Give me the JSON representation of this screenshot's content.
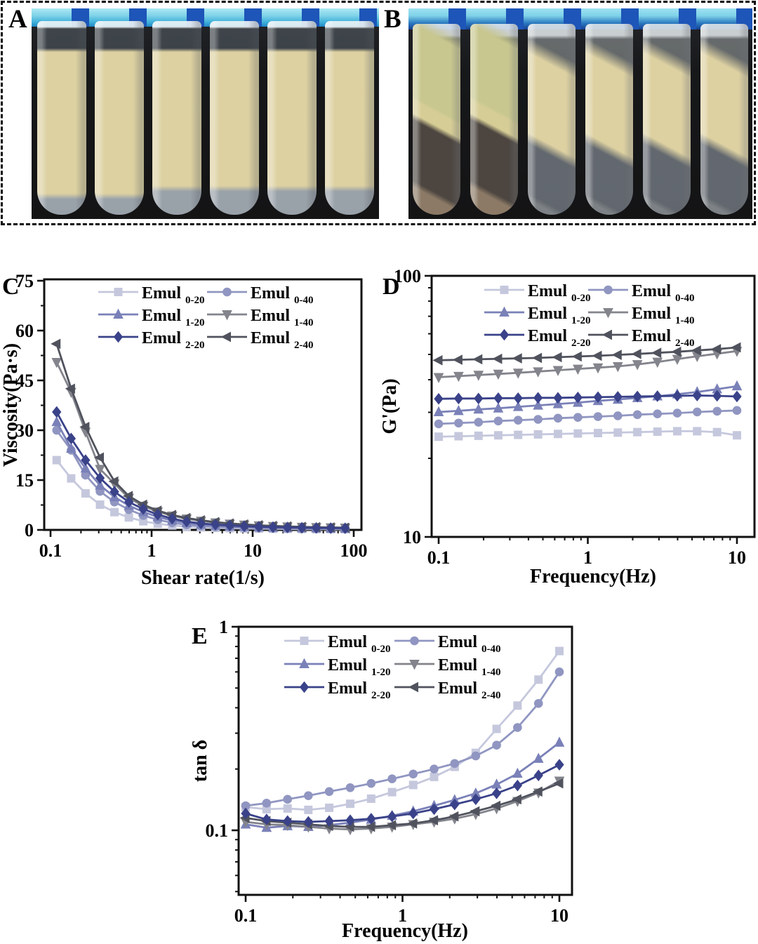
{
  "panels": {
    "a": "A",
    "b": "B",
    "c": "C",
    "d": "D",
    "e": "E"
  },
  "photos": {
    "panel_a_tube_count": 6,
    "panel_b_tube_count": 6,
    "colors": {
      "rack_light": "#7fd2e8",
      "rack_dark": "#1d55b8",
      "emulsion": "#ddd1a2",
      "serum": "#99a1a9",
      "oil_phase": "#c8c78f",
      "sediment": "#4c4540",
      "sludge": "#8c7a66"
    }
  },
  "chart_data": [
    {
      "id": "C",
      "type": "line",
      "xscale": "log",
      "yscale": "linear",
      "xlabel": "Shear rate(1/s)",
      "ylabel": "Viscosity(Pa·s)",
      "xlim": [
        0.1,
        100
      ],
      "ylim": [
        0,
        75
      ],
      "grid": false,
      "legend_position": "top",
      "x_ticks": [
        {
          "v": 0.1,
          "label": "0.1"
        },
        {
          "v": 1,
          "label": "1"
        },
        {
          "v": 10,
          "label": "10"
        },
        {
          "v": 100,
          "label": "100"
        }
      ],
      "y_ticks": [
        {
          "v": 0,
          "label": "0"
        },
        {
          "v": 15,
          "label": "15"
        },
        {
          "v": 30,
          "label": "30"
        },
        {
          "v": 45,
          "label": "45"
        },
        {
          "v": 60,
          "label": "60"
        },
        {
          "v": 75,
          "label": "75"
        }
      ],
      "x": [
        0.115,
        0.16,
        0.222,
        0.309,
        0.429,
        0.596,
        0.827,
        1.15,
        1.6,
        2.22,
        3.08,
        4.28,
        5.94,
        8.25,
        11.5,
        15.9,
        22.1,
        30.7,
        42.6,
        59.2,
        82.2
      ],
      "series": [
        {
          "name": "Emul",
          "sub": "0-20",
          "marker": "square",
          "color": "#c5c8dd",
          "y": [
            21,
            15.5,
            11,
            7.6,
            5.35,
            3.75,
            2.6,
            1.85,
            1.33,
            0.98,
            0.76,
            0.61,
            0.51,
            0.43,
            0.37,
            0.32,
            0.29,
            0.26,
            0.23,
            0.21,
            0.2
          ]
        },
        {
          "name": "Emul",
          "sub": "0-40",
          "marker": "circle",
          "color": "#9096c1",
          "y": [
            30,
            24,
            16.5,
            11.6,
            8.4,
            6.1,
            4.35,
            3.05,
            2.15,
            1.55,
            1.18,
            0.94,
            0.78,
            0.66,
            0.57,
            0.5,
            0.45,
            0.4,
            0.36,
            0.33,
            0.3
          ]
        },
        {
          "name": "Emul",
          "sub": "1-20",
          "marker": "triangle-up",
          "color": "#7a81b8",
          "y": [
            32.5,
            24.5,
            18.5,
            13.4,
            9.9,
            7.3,
            5.4,
            3.9,
            2.85,
            2.1,
            1.62,
            1.3,
            1.08,
            0.92,
            0.79,
            0.69,
            0.61,
            0.55,
            0.5,
            0.46,
            0.42
          ]
        },
        {
          "name": "Emul",
          "sub": "1-40",
          "marker": "triangle-down",
          "color": "#83848c",
          "y": [
            50.5,
            41.5,
            29.5,
            18.3,
            13.9,
            9.6,
            7.2,
            5.5,
            4.25,
            3.35,
            2.7,
            2.2,
            1.82,
            1.53,
            1.3,
            1.12,
            0.98,
            0.86,
            0.77,
            0.7,
            0.64
          ]
        },
        {
          "name": "Emul",
          "sub": "2-20",
          "marker": "diamond",
          "color": "#3a4289",
          "y": [
            35.5,
            27.5,
            21,
            15.6,
            11.5,
            8.4,
            6.3,
            4.6,
            3.4,
            2.5,
            1.95,
            1.6,
            1.33,
            1.12,
            0.96,
            0.84,
            0.74,
            0.66,
            0.6,
            0.55,
            0.5
          ]
        },
        {
          "name": "Emul",
          "sub": "2-40",
          "marker": "triangle-left",
          "color": "#50535d",
          "y": [
            56,
            42.5,
            31,
            21.8,
            14.6,
            10.2,
            7.6,
            5.8,
            4.5,
            3.6,
            2.9,
            2.35,
            1.95,
            1.65,
            1.4,
            1.2,
            1.05,
            0.92,
            0.82,
            0.74,
            0.68
          ]
        }
      ]
    },
    {
      "id": "D",
      "type": "line",
      "xscale": "log",
      "yscale": "log",
      "xlabel": "Frequency(Hz)",
      "ylabel": "G'(Pa)",
      "xlim": [
        0.1,
        10
      ],
      "ylim": [
        10,
        100
      ],
      "grid": false,
      "legend_position": "top",
      "x_ticks": [
        {
          "v": 0.1,
          "label": "0.1"
        },
        {
          "v": 1,
          "label": "1"
        },
        {
          "v": 10,
          "label": "10"
        }
      ],
      "y_ticks": [
        {
          "v": 10,
          "label": "10"
        },
        {
          "v": 100,
          "label": "100"
        }
      ],
      "x": [
        0.1,
        0.136,
        0.185,
        0.251,
        0.341,
        0.464,
        0.631,
        0.858,
        1.17,
        1.59,
        2.15,
        2.93,
        3.98,
        5.41,
        7.36,
        10
      ],
      "series": [
        {
          "name": "Emul",
          "sub": "0-20",
          "marker": "square",
          "color": "#c5c8dd",
          "y": [
            24.2,
            24.3,
            24.4,
            24.5,
            24.6,
            24.7,
            24.8,
            24.9,
            25.0,
            25.1,
            25.2,
            25.3,
            25.4,
            25.4,
            25.2,
            24.5
          ]
        },
        {
          "name": "Emul",
          "sub": "0-40",
          "marker": "circle",
          "color": "#9096c1",
          "y": [
            27.1,
            27.3,
            27.5,
            27.8,
            28.0,
            28.2,
            28.5,
            28.7,
            28.9,
            29.1,
            29.4,
            29.6,
            29.8,
            30.1,
            30.3,
            30.5
          ]
        },
        {
          "name": "Emul",
          "sub": "1-20",
          "marker": "triangle-up",
          "color": "#7a81b8",
          "y": [
            30.1,
            30.4,
            30.8,
            31.1,
            31.5,
            31.9,
            32.3,
            32.7,
            33.2,
            33.6,
            34.1,
            34.6,
            35.2,
            35.9,
            36.8,
            37.8
          ]
        },
        {
          "name": "Emul",
          "sub": "1-40",
          "marker": "triangle-down",
          "color": "#83848c",
          "y": [
            40.9,
            41.3,
            41.7,
            42.1,
            42.5,
            43.0,
            43.5,
            44.0,
            44.5,
            45.0,
            45.8,
            46.8,
            48.0,
            49.2,
            50.3,
            51.5
          ]
        },
        {
          "name": "Emul",
          "sub": "2-20",
          "marker": "diamond",
          "color": "#3a4289",
          "y": [
            33.8,
            33.9,
            33.9,
            34.0,
            34.0,
            34.1,
            34.1,
            34.2,
            34.3,
            34.4,
            34.5,
            34.6,
            34.7,
            34.8,
            34.7,
            34.5
          ]
        },
        {
          "name": "Emul",
          "sub": "2-40",
          "marker": "triangle-left",
          "color": "#50535d",
          "y": [
            47.5,
            47.7,
            47.9,
            48.1,
            48.3,
            48.5,
            48.8,
            49.1,
            49.4,
            49.8,
            50.2,
            50.7,
            51.2,
            51.8,
            52.4,
            53.2
          ]
        }
      ]
    },
    {
      "id": "E",
      "type": "line",
      "xscale": "log",
      "yscale": "log",
      "xlabel": "Frequency(Hz)",
      "ylabel": "tan δ",
      "xlim": [
        0.1,
        10
      ],
      "ylim": [
        0.048,
        1
      ],
      "grid": false,
      "legend_position": "top",
      "x_ticks": [
        {
          "v": 0.1,
          "label": "0.1"
        },
        {
          "v": 1,
          "label": "1"
        },
        {
          "v": 10,
          "label": "10"
        }
      ],
      "y_ticks": [
        {
          "v": 0.1,
          "label": "0.1"
        },
        {
          "v": 1,
          "label": "1"
        }
      ],
      "x": [
        0.1,
        0.136,
        0.185,
        0.251,
        0.341,
        0.464,
        0.631,
        0.858,
        1.17,
        1.59,
        2.15,
        2.93,
        3.98,
        5.41,
        7.36,
        10
      ],
      "series": [
        {
          "name": "Emul",
          "sub": "0-20",
          "marker": "square",
          "color": "#c5c8dd",
          "y": [
            0.13,
            0.127,
            0.128,
            0.126,
            0.129,
            0.135,
            0.143,
            0.154,
            0.167,
            0.183,
            0.205,
            0.24,
            0.315,
            0.41,
            0.55,
            0.76
          ]
        },
        {
          "name": "Emul",
          "sub": "0-40",
          "marker": "circle",
          "color": "#9096c1",
          "y": [
            0.132,
            0.136,
            0.142,
            0.148,
            0.155,
            0.162,
            0.17,
            0.179,
            0.189,
            0.2,
            0.213,
            0.232,
            0.262,
            0.32,
            0.42,
            0.6
          ]
        },
        {
          "name": "Emul",
          "sub": "1-20",
          "marker": "triangle-up",
          "color": "#7a81b8",
          "y": [
            0.107,
            0.103,
            0.105,
            0.104,
            0.106,
            0.109,
            0.113,
            0.118,
            0.124,
            0.132,
            0.141,
            0.152,
            0.168,
            0.19,
            0.225,
            0.27
          ]
        },
        {
          "name": "Emul",
          "sub": "1-40",
          "marker": "triangle-down",
          "color": "#83848c",
          "y": [
            0.11,
            0.107,
            0.106,
            0.104,
            0.102,
            0.101,
            0.102,
            0.104,
            0.107,
            0.11,
            0.114,
            0.12,
            0.128,
            0.139,
            0.153,
            0.175
          ]
        },
        {
          "name": "Emul",
          "sub": "2-20",
          "marker": "diamond",
          "color": "#3a4289",
          "y": [
            0.121,
            0.113,
            0.111,
            0.11,
            0.111,
            0.112,
            0.114,
            0.117,
            0.121,
            0.127,
            0.134,
            0.142,
            0.152,
            0.166,
            0.186,
            0.21
          ]
        },
        {
          "name": "Emul",
          "sub": "2-40",
          "marker": "triangle-left",
          "color": "#50535d",
          "y": [
            0.115,
            0.111,
            0.109,
            0.107,
            0.105,
            0.104,
            0.104,
            0.106,
            0.108,
            0.112,
            0.117,
            0.124,
            0.132,
            0.142,
            0.155,
            0.17
          ]
        }
      ]
    }
  ]
}
